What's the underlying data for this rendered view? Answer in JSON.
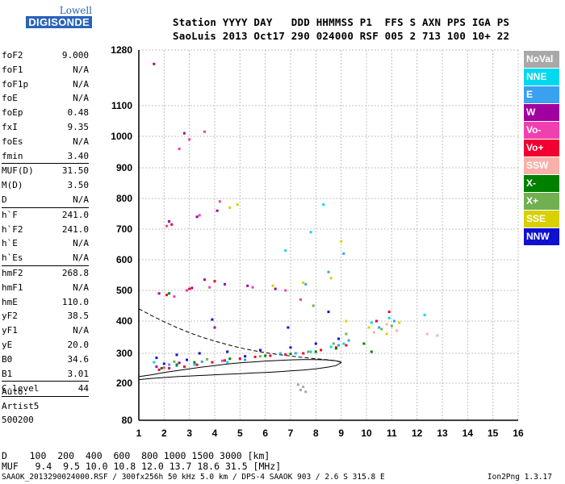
{
  "logo": {
    "top": "Lowell",
    "bottom": "DIGISONDE"
  },
  "header": {
    "line1": "Station YYYY DAY   DDD HHMMSS P1  FFS S AXN PPS IGA PS",
    "line2": "SaoLuis 2013 Oct17 290 024000 RSF 005 2 713 100 10+ 22"
  },
  "params": [
    {
      "name": "foF2",
      "value": "9.000"
    },
    {
      "name": "foF1",
      "value": "N/A"
    },
    {
      "name": "foF1p",
      "value": "N/A"
    },
    {
      "name": "foE",
      "value": "N/A"
    },
    {
      "name": "foEp",
      "value": "0.48"
    },
    {
      "name": "fxI",
      "value": "9.35"
    },
    {
      "name": "foEs",
      "value": "N/A"
    },
    {
      "name": "fmin",
      "value": "3.40"
    },
    {
      "name": "MUF(D)",
      "value": "31.50",
      "sep": true
    },
    {
      "name": "M(D)",
      "value": "3.50"
    },
    {
      "name": "D",
      "value": "N/A"
    },
    {
      "name": "h`F",
      "value": "241.0",
      "sep": true
    },
    {
      "name": "h`F2",
      "value": "241.0"
    },
    {
      "name": "h`E",
      "value": "N/A"
    },
    {
      "name": "h`Es",
      "value": "N/A"
    },
    {
      "name": "hmF2",
      "value": "268.8",
      "sep": true
    },
    {
      "name": "hmF1",
      "value": "N/A"
    },
    {
      "name": "hmE",
      "value": "110.0"
    },
    {
      "name": "yF2",
      "value": "38.5"
    },
    {
      "name": "yF1",
      "value": "N/A"
    },
    {
      "name": "yE",
      "value": "20.0"
    },
    {
      "name": "B0",
      "value": "34.6"
    },
    {
      "name": "B1",
      "value": "3.01"
    },
    {
      "name": "C-level",
      "value": "44",
      "sep": true
    }
  ],
  "autoscaling": {
    "line1": "Auto:",
    "line2": "Artist5",
    "line3": "500200"
  },
  "legend": [
    {
      "label": "NoVal",
      "color": "#a8a8a8"
    },
    {
      "label": "NNE",
      "color": "#00d8f0"
    },
    {
      "label": "E",
      "color": "#3aa0f0"
    },
    {
      "label": "W",
      "color": "#a000a0"
    },
    {
      "label": "Vo-",
      "color": "#f040b0"
    },
    {
      "label": "Vo+",
      "color": "#f00030"
    },
    {
      "label": "SSW",
      "color": "#f8b0a8"
    },
    {
      "label": "X-",
      "color": "#008000"
    },
    {
      "label": "X+",
      "color": "#70b050"
    },
    {
      "label": "SSE",
      "color": "#d8d000"
    },
    {
      "label": "NNW",
      "color": "#1010d0"
    }
  ],
  "footer": {
    "d_line": "D    100  200  400  600  800 1000 1500 3000 [km]",
    "muf_line": "MUF   9.4  9.5 10.0 10.8 12.0 13.7 18.6 31.5 [MHz]",
    "file_line": "SAAOK_2013290024000.RSF / 300fx256h 50 kHz 5.0 km / DPS-4 SAAOK 903 / 2.6 S 315.8 E",
    "version": "Ion2Png 1.3.17"
  },
  "chart_data": {
    "type": "scatter",
    "title": "",
    "xlabel": "",
    "ylabel": "",
    "xlim": [
      1,
      16
    ],
    "ylim": [
      80,
      1280
    ],
    "x_ticks": [
      1,
      2,
      3,
      4,
      5,
      6,
      7,
      8,
      9,
      10,
      11,
      12,
      13,
      14,
      15,
      16
    ],
    "y_ticks": [
      80,
      200,
      300,
      400,
      500,
      600,
      700,
      800,
      900,
      1000,
      1100,
      1280
    ],
    "grid": true,
    "legend_position": "right",
    "series": [
      {
        "name": "NoVal",
        "points": [
          [
            7.3,
            195
          ],
          [
            7.4,
            178
          ],
          [
            7.5,
            188
          ],
          [
            7.6,
            172
          ]
        ]
      },
      {
        "name": "NNE",
        "points": [
          [
            2.5,
            258
          ],
          [
            3.2,
            262
          ],
          [
            4.5,
            270
          ],
          [
            6.6,
            300
          ],
          [
            7.8,
            305
          ],
          [
            8.6,
            320
          ],
          [
            9.1,
            330
          ],
          [
            10.2,
            395
          ],
          [
            10.9,
            410
          ],
          [
            12.3,
            420
          ],
          [
            6.8,
            630
          ],
          [
            7.8,
            690
          ],
          [
            8.3,
            780
          ],
          [
            1.6,
            270
          ]
        ]
      },
      {
        "name": "E",
        "points": [
          [
            2.2,
            262
          ],
          [
            3.5,
            272
          ],
          [
            5.2,
            278
          ],
          [
            7.2,
            300
          ],
          [
            8.2,
            310
          ],
          [
            8.9,
            325
          ],
          [
            9.3,
            340
          ],
          [
            10.5,
            380
          ],
          [
            11.1,
            400
          ],
          [
            7.6,
            520
          ],
          [
            8.5,
            560
          ],
          [
            9.1,
            620
          ]
        ]
      },
      {
        "name": "W",
        "points": [
          [
            1.7,
            255
          ],
          [
            2.6,
            268
          ],
          [
            3.1,
            508
          ],
          [
            3.6,
            535
          ],
          [
            4.1,
            760
          ],
          [
            4.4,
            520
          ],
          [
            1.6,
            1235
          ],
          [
            2.8,
            1010
          ],
          [
            3.3,
            740
          ],
          [
            5.3,
            515
          ],
          [
            6.4,
            505
          ],
          [
            1.8,
            490
          ],
          [
            2.2,
            725
          ],
          [
            4.0,
            380
          ]
        ]
      },
      {
        "name": "Vo-",
        "points": [
          [
            2.0,
            252
          ],
          [
            2.4,
            480
          ],
          [
            2.9,
            500
          ],
          [
            3.4,
            745
          ],
          [
            3.8,
            510
          ],
          [
            4.3,
            275
          ],
          [
            2.1,
            710
          ],
          [
            2.6,
            960
          ],
          [
            3.0,
            990
          ],
          [
            3.6,
            1015
          ],
          [
            4.2,
            790
          ],
          [
            5.5,
            510
          ],
          [
            6.8,
            500
          ],
          [
            7.4,
            470
          ]
        ]
      },
      {
        "name": "Vo+",
        "points": [
          [
            1.8,
            245
          ],
          [
            2.2,
            250
          ],
          [
            2.8,
            255
          ],
          [
            3.3,
            262
          ],
          [
            3.9,
            270
          ],
          [
            4.4,
            276
          ],
          [
            5.0,
            282
          ],
          [
            5.6,
            288
          ],
          [
            6.2,
            292
          ],
          [
            6.8,
            296
          ],
          [
            7.5,
            300
          ],
          [
            8.2,
            310
          ],
          [
            8.8,
            318
          ],
          [
            9.2,
            325
          ],
          [
            2.1,
            485
          ],
          [
            3.0,
            505
          ],
          [
            4.0,
            530
          ],
          [
            2.3,
            715
          ],
          [
            10.4,
            400
          ],
          [
            10.9,
            430
          ]
        ]
      },
      {
        "name": "SSW",
        "points": [
          [
            10.3,
            365
          ],
          [
            10.8,
            390
          ],
          [
            11.2,
            370
          ],
          [
            12.4,
            360
          ],
          [
            12.8,
            355
          ]
        ]
      },
      {
        "name": "X-",
        "points": [
          [
            1.9,
            250
          ],
          [
            2.5,
            262
          ],
          [
            3.2,
            270
          ],
          [
            4.6,
            282
          ],
          [
            6.0,
            292
          ],
          [
            7.0,
            298
          ],
          [
            8.0,
            305
          ],
          [
            8.8,
            315
          ],
          [
            2.2,
            490
          ],
          [
            9.9,
            330
          ],
          [
            10.2,
            305
          ]
        ]
      },
      {
        "name": "X+",
        "points": [
          [
            2.4,
            272
          ],
          [
            3.7,
            280
          ],
          [
            5.8,
            290
          ],
          [
            7.7,
            305
          ],
          [
            8.7,
            330
          ],
          [
            9.2,
            360
          ],
          [
            10.6,
            375
          ],
          [
            11.0,
            385
          ],
          [
            7.9,
            450
          ]
        ]
      },
      {
        "name": "SSE",
        "points": [
          [
            4.6,
            770
          ],
          [
            6.3,
            515
          ],
          [
            7.5,
            525
          ],
          [
            8.6,
            540
          ],
          [
            9.2,
            400
          ],
          [
            10.1,
            380
          ],
          [
            10.8,
            360
          ],
          [
            11.3,
            395
          ],
          [
            9.0,
            660
          ],
          [
            4.9,
            780
          ]
        ]
      },
      {
        "name": "NNW",
        "points": [
          [
            1.7,
            285
          ],
          [
            2.5,
            295
          ],
          [
            3.4,
            300
          ],
          [
            4.5,
            305
          ],
          [
            5.8,
            310
          ],
          [
            7.0,
            318
          ],
          [
            8.0,
            330
          ],
          [
            8.9,
            345
          ],
          [
            2.0,
            265
          ],
          [
            2.9,
            278
          ],
          [
            5.2,
            290
          ],
          [
            3.9,
            405
          ],
          [
            8.5,
            430
          ],
          [
            6.9,
            380
          ]
        ]
      }
    ],
    "curves": [
      {
        "name": "virtual-height",
        "style": "dashed",
        "x": [
          1.0,
          1.5,
          2.0,
          2.5,
          3.0,
          3.5,
          4.0,
          4.5,
          5.0,
          5.5,
          6.0,
          6.5,
          7.0,
          7.5,
          8.0,
          8.5,
          8.8,
          9.0
        ],
        "y": [
          440,
          418,
          398,
          380,
          364,
          350,
          338,
          327,
          317,
          309,
          302,
          296,
          291,
          286,
          282,
          278,
          275,
          271
        ]
      },
      {
        "name": "true-height",
        "style": "solid",
        "x": [
          1.0,
          1.5,
          2.0,
          2.5,
          3.0,
          3.5,
          4.0,
          4.5,
          5.0,
          5.5,
          6.0,
          6.5,
          7.0,
          7.5,
          8.0,
          8.5,
          8.8,
          9.0,
          9.0,
          8.8,
          8.4,
          8.0,
          7.5,
          7.0,
          6.5,
          6.0,
          5.5,
          5.0,
          4.5,
          4.0,
          3.5,
          3.0,
          2.5,
          2.0,
          1.5,
          1.0
        ],
        "y": [
          212,
          216,
          219,
          222,
          224,
          226,
          228,
          230,
          232,
          234,
          236,
          238,
          241,
          244,
          248,
          254,
          259,
          269,
          270,
          275,
          278,
          279,
          279,
          278,
          276,
          274,
          271,
          268,
          264,
          259,
          254,
          248,
          242,
          236,
          228,
          222
        ]
      }
    ]
  }
}
